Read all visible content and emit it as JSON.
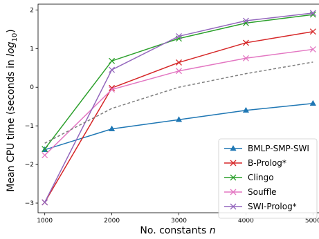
{
  "chart_data": {
    "type": "line",
    "xlabel": "No. constants n",
    "xlabel_parts": {
      "text": "No. constants ",
      "var": "n"
    },
    "ylabel": "Mean CPU time (seconds in log10)",
    "ylabel_parts": {
      "text": "Mean CPU time (seconds in ",
      "fn": "log",
      "sub": "10",
      "close": ")"
    },
    "x": [
      1000,
      2000,
      3000,
      4000,
      5000
    ],
    "xlim": [
      900,
      5100
    ],
    "ylim": [
      -3.25,
      2.15
    ],
    "xticks": [
      "1000",
      "2000",
      "3000",
      "4000",
      "5000"
    ],
    "yticks": [
      "-3",
      "-2",
      "-1",
      "0",
      "1",
      "2"
    ],
    "grid": false,
    "legend_position": "lower-right",
    "series": [
      {
        "name": "BMLP-SMP-SWI",
        "values": [
          -1.62,
          -1.08,
          -0.84,
          -0.6,
          -0.42
        ],
        "color": "#1f77b4",
        "marker": "triangle",
        "line_style": "solid"
      },
      {
        "name": "B-Prolog*",
        "values": [
          -2.98,
          -0.02,
          0.64,
          1.15,
          1.44
        ],
        "color": "#d62728",
        "marker": "x",
        "line_style": "solid"
      },
      {
        "name": "Clingo",
        "values": [
          -1.6,
          0.68,
          1.26,
          1.66,
          1.88
        ],
        "color": "#2ca02c",
        "marker": "x",
        "line_style": "solid"
      },
      {
        "name": "Souffle",
        "values": [
          -1.76,
          -0.06,
          0.42,
          0.75,
          0.98
        ],
        "color": "#e377c2",
        "marker": "x",
        "line_style": "solid"
      },
      {
        "name": "SWI-Prolog*",
        "values": [
          -2.98,
          0.45,
          1.32,
          1.72,
          1.92
        ],
        "color": "#9467bd",
        "marker": "x",
        "line_style": "solid"
      },
      {
        "values": [
          -1.45,
          -0.55,
          0.0,
          0.35,
          0.65
        ],
        "color": "#7f7f7f",
        "marker": "none",
        "line_style": "dashed"
      }
    ]
  }
}
